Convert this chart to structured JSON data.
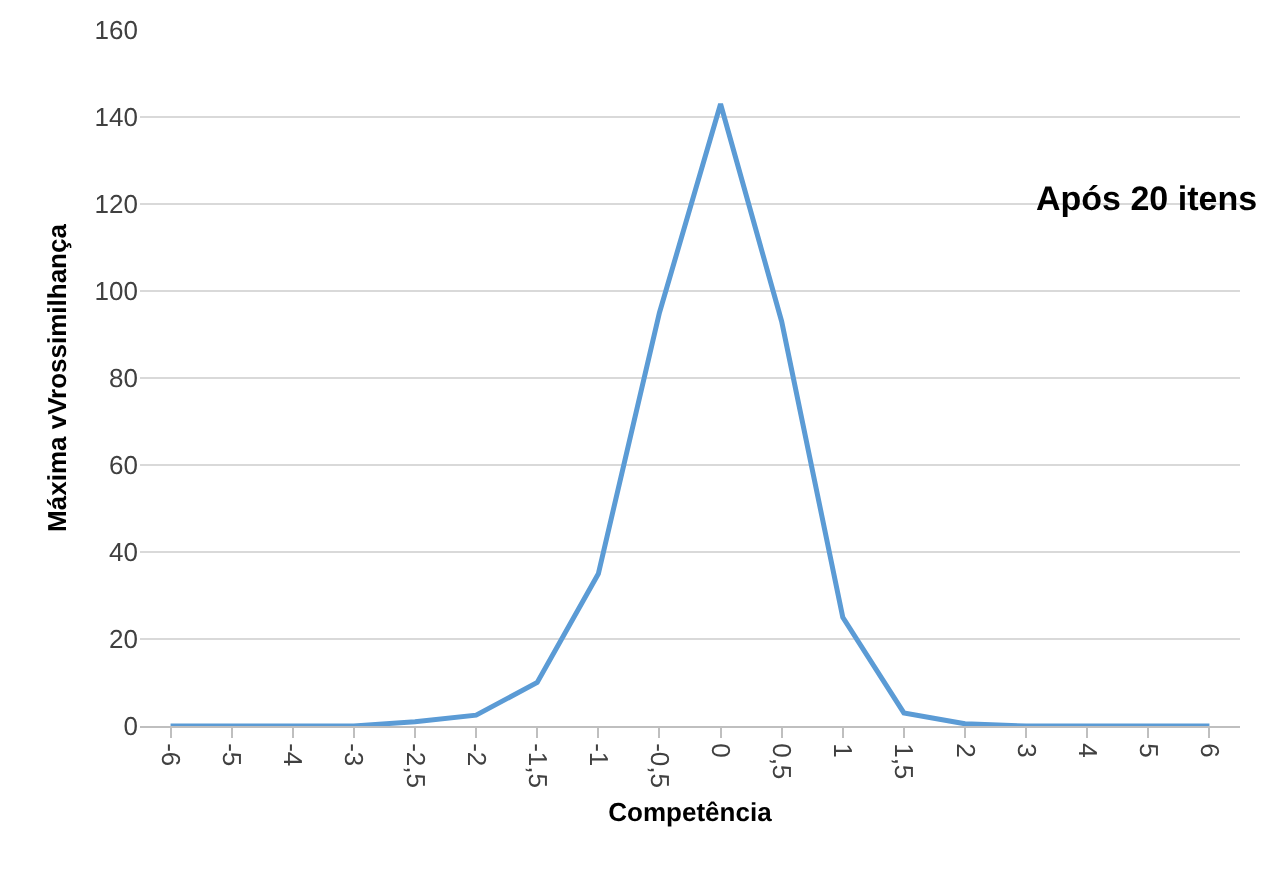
{
  "chart_data": {
    "type": "line",
    "xlabel": "Competência",
    "ylabel": "Máxima vVrossimilhança",
    "categories": [
      "-6",
      "-5",
      "-4",
      "-3",
      "-2,5",
      "-2",
      "-1,5",
      "-1",
      "-0,5",
      "0",
      "0,5",
      "1",
      "1,5",
      "2",
      "3",
      "4",
      "5",
      "6"
    ],
    "series": [
      {
        "color": "#5b9bd5",
        "values": [
          0,
          0,
          0,
          0,
          1,
          2.5,
          10,
          35,
          95,
          143,
          93,
          25,
          3,
          0.5,
          0,
          0,
          0,
          0
        ]
      }
    ],
    "ylim": [
      0,
      160
    ],
    "yticks": [
      0,
      20,
      40,
      60,
      80,
      100,
      120,
      140,
      160
    ],
    "grid": "y",
    "marker": "none",
    "line_style": "solid",
    "annotations": [
      "Após 20 itens"
    ]
  }
}
